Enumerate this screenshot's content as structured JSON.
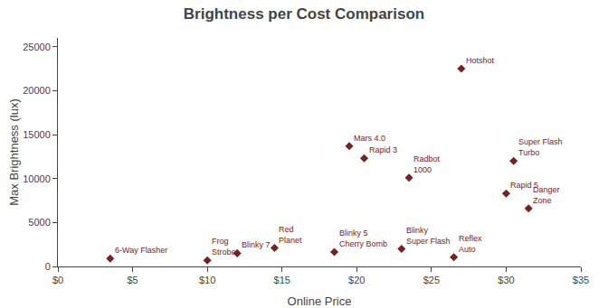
{
  "chart_data": {
    "type": "scatter",
    "title": "Brightness per Cost Comparison",
    "xlabel": "Online Price",
    "ylabel": "Max Brightness (lux)",
    "color": "#7B2020",
    "marker": "diamond",
    "x": [
      3.5,
      10.0,
      12.0,
      14.5,
      18.5,
      19.5,
      20.5,
      23.0,
      23.5,
      26.5,
      27.0,
      30.5,
      30.0,
      31.5
    ],
    "values": [
      900,
      700,
      1500,
      2100,
      1650,
      13700,
      12300,
      2000,
      10100,
      1050,
      22500,
      12000,
      8300,
      6600
    ],
    "annotations": [
      "6-Way Flasher",
      "Frog\nStrobe",
      "Blinky 7",
      "Red\nPlanet",
      "Blinky 5\nCherry Bomb",
      "Mars 4.0",
      "Rapid 3",
      "Blinky\nSuper Flash",
      "Radbot\n1000",
      "Reflex\nAuto",
      "Hotshot",
      "Super Flash\nTurbo",
      "Rapid 5",
      "Danger\nZone"
    ],
    "xlim": [
      0,
      35
    ],
    "ylim": [
      0,
      26000
    ],
    "xticks": [
      {
        "value": 0,
        "label": "$0"
      },
      {
        "value": 5,
        "label": "$5"
      },
      {
        "value": 10,
        "label": "$10"
      },
      {
        "value": 15,
        "label": "$15"
      },
      {
        "value": 20,
        "label": "$20"
      },
      {
        "value": 25,
        "label": "$25"
      },
      {
        "value": 30,
        "label": "$30"
      },
      {
        "value": 35,
        "label": "$35"
      }
    ],
    "yticks": [
      0,
      5000,
      10000,
      15000,
      20000,
      25000
    ],
    "grid": false
  }
}
